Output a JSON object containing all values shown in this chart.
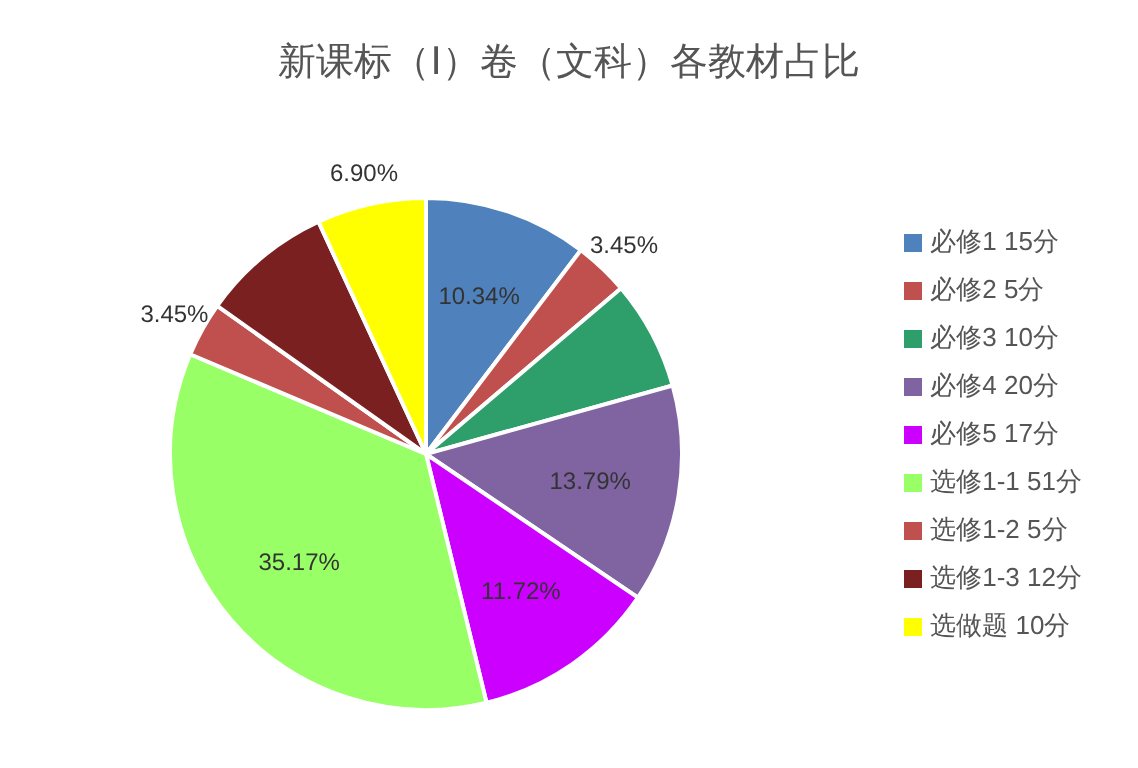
{
  "chart_data": {
    "type": "pie",
    "title": "新课标（Ⅰ）卷（文科）各教材占比",
    "categories": [
      "必修1 15分",
      "必修2 5分",
      "必修3 10分",
      "必修4 20分",
      "必修5 17分",
      "选修1-1 51分",
      "选修1-2 5分",
      "选修1-3 12分",
      "选做题  10分"
    ],
    "values": [
      10.34,
      3.45,
      6.9,
      13.79,
      11.72,
      35.17,
      3.45,
      8.28,
      6.9
    ],
    "colors": [
      "#4f81bd",
      "#c0504d",
      "#2e9e6a",
      "#8064a2",
      "#cc00ff",
      "#99ff66",
      "#c0504d",
      "#7b2020",
      "#ffff00"
    ],
    "value_labels": [
      "10.34%",
      "3.45%",
      null,
      "13.79%",
      "11.72%",
      "35.17%",
      "3.45%",
      null,
      "6.90%"
    ],
    "legend": "right"
  }
}
